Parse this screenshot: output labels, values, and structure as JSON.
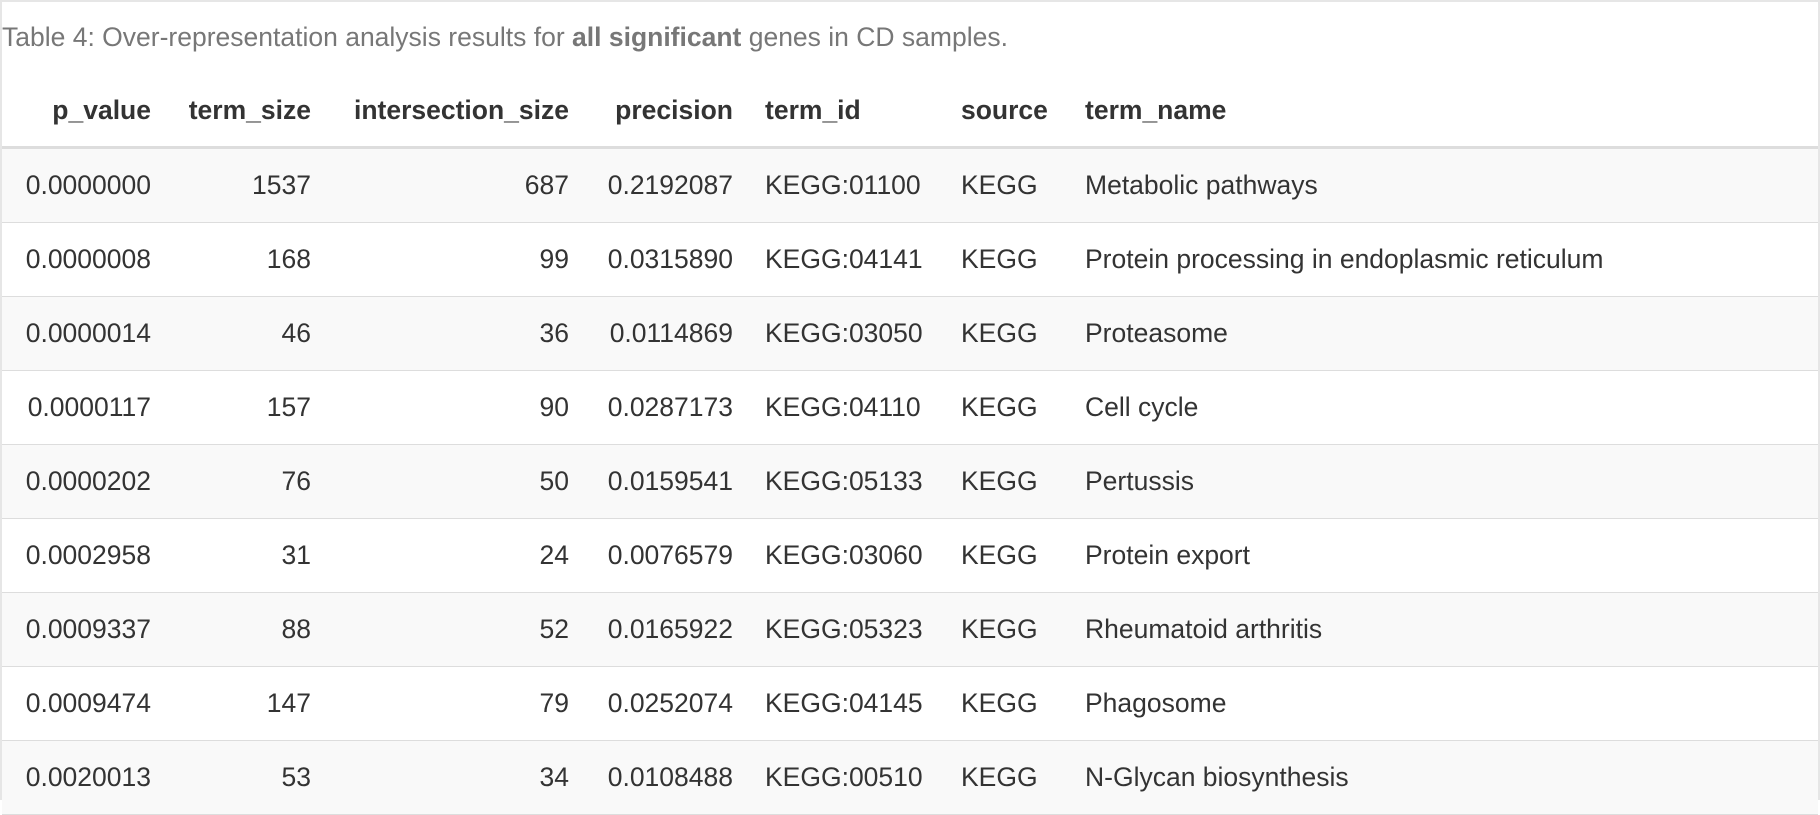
{
  "caption": {
    "prefix": "Table 4: Over-representation analysis results for ",
    "emphasis": "all significant",
    "suffix": " genes in CD samples."
  },
  "columns": [
    "p_value",
    "term_size",
    "intersection_size",
    "precision",
    "term_id",
    "source",
    "term_name"
  ],
  "rows": [
    [
      "0.0000000",
      "1537",
      "687",
      "0.2192087",
      "KEGG:01100",
      "KEGG",
      "Metabolic pathways"
    ],
    [
      "0.0000008",
      "168",
      "99",
      "0.0315890",
      "KEGG:04141",
      "KEGG",
      "Protein processing in endoplasmic reticulum"
    ],
    [
      "0.0000014",
      "46",
      "36",
      "0.0114869",
      "KEGG:03050",
      "KEGG",
      "Proteasome"
    ],
    [
      "0.0000117",
      "157",
      "90",
      "0.0287173",
      "KEGG:04110",
      "KEGG",
      "Cell cycle"
    ],
    [
      "0.0000202",
      "76",
      "50",
      "0.0159541",
      "KEGG:05133",
      "KEGG",
      "Pertussis"
    ],
    [
      "0.0002958",
      "31",
      "24",
      "0.0076579",
      "KEGG:03060",
      "KEGG",
      "Protein export"
    ],
    [
      "0.0009337",
      "88",
      "52",
      "0.0165922",
      "KEGG:05323",
      "KEGG",
      "Rheumatoid arthritis"
    ],
    [
      "0.0009474",
      "147",
      "79",
      "0.0252074",
      "KEGG:04145",
      "KEGG",
      "Phagosome"
    ],
    [
      "0.0020013",
      "53",
      "34",
      "0.0108488",
      "KEGG:00510",
      "KEGG",
      "N-Glycan biosynthesis"
    ]
  ]
}
